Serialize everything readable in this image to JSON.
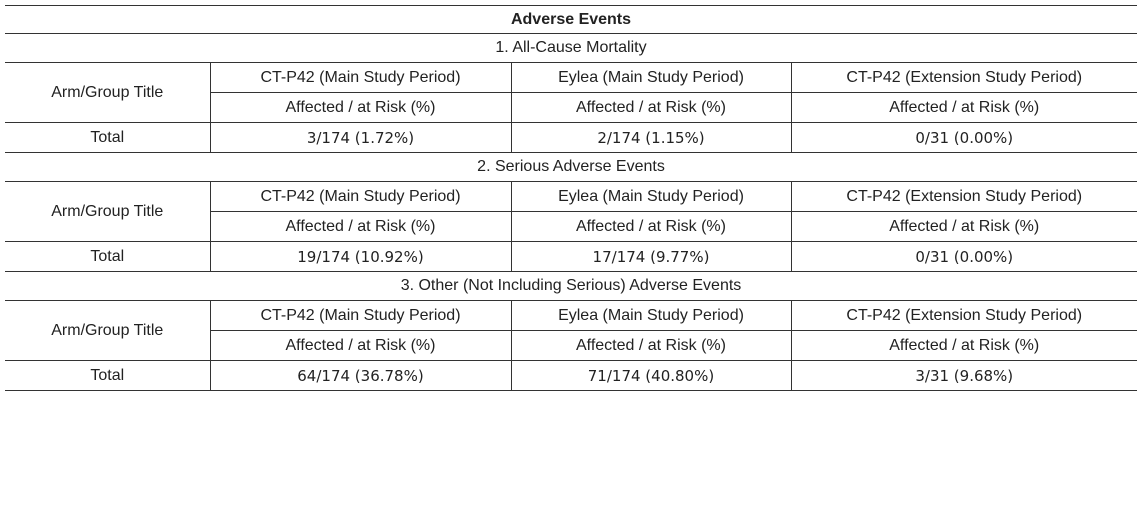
{
  "title": "Adverse Events",
  "sections": [
    {
      "heading": "1. All-Cause Mortality",
      "row_label": "Arm/Group Title",
      "groups": [
        "CT-P42 (Main Study Period)",
        "Eylea (Main Study Period)",
        "CT-P42 (Extension Study Period)"
      ],
      "measure": [
        "Affected / at Risk (%)",
        "Affected / at Risk (%)",
        "Affected / at Risk (%)"
      ],
      "total_label": "Total",
      "totals": [
        "3/174 (1.72%)",
        "2/174 (1.15%)",
        "0/31 (0.00%)"
      ]
    },
    {
      "heading": "2. Serious Adverse Events",
      "row_label": "Arm/Group Title",
      "groups": [
        "CT-P42 (Main Study Period)",
        "Eylea (Main Study Period)",
        "CT-P42 (Extension Study Period)"
      ],
      "measure": [
        "Affected / at Risk (%)",
        "Affected / at Risk (%)",
        "Affected / at Risk (%)"
      ],
      "total_label": "Total",
      "totals": [
        "19/174 (10.92%)",
        "17/174 (9.77%)",
        "0/31 (0.00%)"
      ]
    },
    {
      "heading": "3. Other (Not Including Serious) Adverse Events",
      "row_label": "Arm/Group Title",
      "groups": [
        "CT-P42 (Main Study Period)",
        "Eylea (Main Study Period)",
        "CT-P42 (Extension Study Period)"
      ],
      "measure": [
        "Affected / at Risk (%)",
        "Affected / at Risk (%)",
        "Affected / at Risk (%)"
      ],
      "total_label": "Total",
      "totals": [
        "64/174 (36.78%)",
        "71/174 (40.80%)",
        "3/31 (9.68%)"
      ]
    }
  ]
}
